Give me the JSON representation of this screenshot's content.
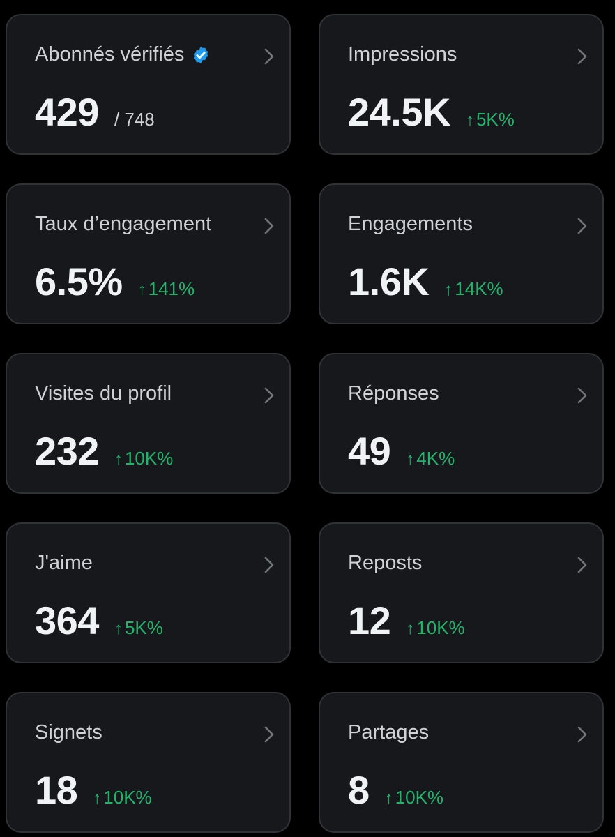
{
  "metrics": [
    {
      "label": "Abonnés vérifiés",
      "value": "429",
      "total": "/ 748",
      "verified_icon": "verified-badge-icon"
    },
    {
      "label": "Impressions",
      "value": "24.5K",
      "delta": "5K%",
      "delta_arrow": "↑"
    },
    {
      "label": "Taux d’engagement",
      "value": "6.5%",
      "delta": "141%",
      "delta_arrow": "↑"
    },
    {
      "label": "Engagements",
      "value": "1.6K",
      "delta": "14K%",
      "delta_arrow": "↑"
    },
    {
      "label": "Visites du profil",
      "value": "232",
      "delta": "10K%",
      "delta_arrow": "↑"
    },
    {
      "label": "Réponses",
      "value": "49",
      "delta": "4K%",
      "delta_arrow": "↑"
    },
    {
      "label": "J'aime",
      "value": "364",
      "delta": "5K%",
      "delta_arrow": "↑"
    },
    {
      "label": "Reposts",
      "value": "12",
      "delta": "10K%",
      "delta_arrow": "↑"
    },
    {
      "label": "Signets",
      "value": "18",
      "delta": "10K%",
      "delta_arrow": "↑"
    },
    {
      "label": "Partages",
      "value": "8",
      "delta": "10K%",
      "delta_arrow": "↑"
    }
  ],
  "colors": {
    "background": "#000000",
    "card": "#16181c",
    "card_border": "#2f3336",
    "label": "#cfd2d6",
    "value": "#eff3f4",
    "positive": "#22b36b",
    "verified": "#1d9bf0"
  }
}
